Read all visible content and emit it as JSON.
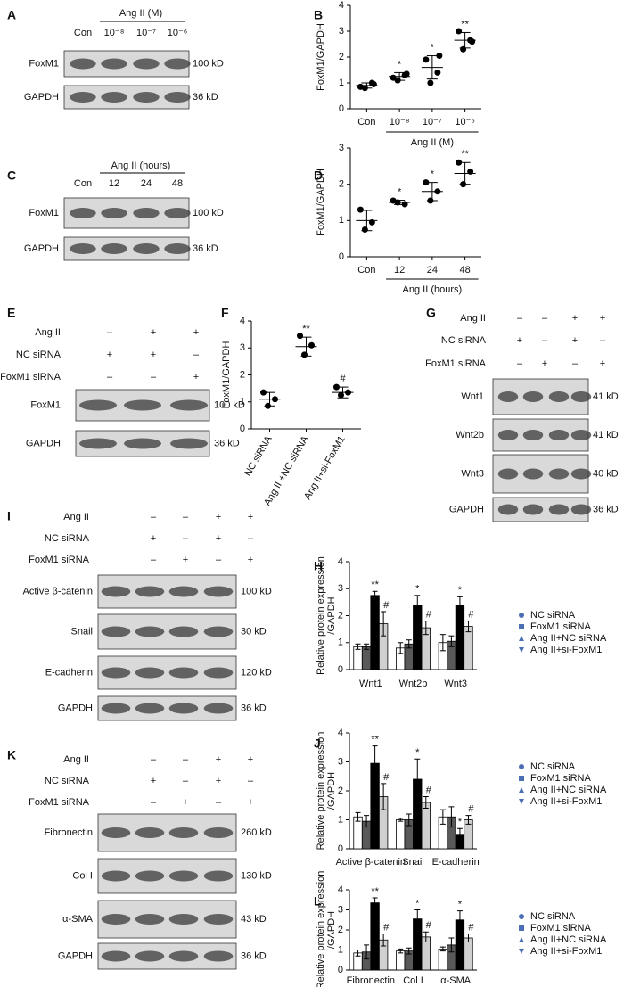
{
  "chart_data": [
    {
      "panel": "B",
      "type": "dot",
      "ylabel": "FoxM1/GAPDH",
      "categories": [
        "Con",
        "10⁻⁸",
        "10⁻⁷",
        "10⁻⁶"
      ],
      "group_label": "Ang II (M)",
      "ylim": [
        0,
        4
      ],
      "yticks": [
        0,
        1,
        2,
        3,
        4
      ],
      "color": "#000000",
      "points": [
        [
          0.85,
          1.0,
          0.8,
          0.95
        ],
        [
          1.2,
          1.3,
          1.1,
          1.35
        ],
        [
          1.9,
          1.4,
          1.0,
          2.05
        ],
        [
          3.0,
          2.65,
          2.3,
          2.6
        ]
      ],
      "mean": [
        0.9,
        1.25,
        1.6,
        2.65
      ],
      "sd": [
        0.1,
        0.15,
        0.45,
        0.3
      ],
      "annotations": [
        null,
        "*",
        "*",
        "**"
      ]
    },
    {
      "panel": "D",
      "type": "dot",
      "ylabel": "FoxM1/GAPDH",
      "categories": [
        "Con",
        "12",
        "24",
        "48"
      ],
      "group_label": "Ang II (hours)",
      "ylim": [
        0,
        3
      ],
      "yticks": [
        0,
        1,
        2,
        3
      ],
      "color": "#000000",
      "points": [
        [
          1.3,
          0.95,
          0.75
        ],
        [
          1.55,
          1.45,
          1.5
        ],
        [
          2.05,
          1.8,
          1.55
        ],
        [
          2.6,
          2.35,
          2.0
        ]
      ],
      "mean": [
        1.0,
        1.5,
        1.8,
        2.3
      ],
      "sd": [
        0.28,
        0.06,
        0.25,
        0.3
      ],
      "annotations": [
        null,
        "*",
        "*",
        "**"
      ]
    },
    {
      "panel": "F",
      "type": "dot",
      "ylabel": "FoxM1/GAPDH",
      "categories": [
        "NC siRNA",
        "Ang II +NC siRNA",
        "Ang II+si-FoxM1"
      ],
      "ylim": [
        0,
        4
      ],
      "yticks": [
        0,
        1,
        2,
        3,
        4
      ],
      "color": "#000000",
      "points": [
        [
          1.35,
          1.1,
          0.85
        ],
        [
          3.45,
          3.1,
          2.75
        ],
        [
          1.55,
          1.35,
          1.25
        ]
      ],
      "mean": [
        1.1,
        3.05,
        1.35
      ],
      "sd": [
        0.25,
        0.35,
        0.2
      ],
      "annotations": [
        null,
        "**",
        "#"
      ]
    },
    {
      "panel": "H",
      "type": "bar",
      "ylabel": [
        "Relative protein expression",
        "/GAPDH"
      ],
      "categories": [
        "Wnt1",
        "Wnt2b",
        "Wnt3"
      ],
      "ylim": [
        0,
        4
      ],
      "yticks": [
        0,
        1,
        2,
        3,
        4
      ],
      "marker_color": "#4a6fb5",
      "series": [
        {
          "name": "NC siRNA",
          "color": "#ffffff",
          "marker": "circle",
          "values": [
            0.85,
            0.8,
            1.0
          ],
          "errors": [
            0.1,
            0.2,
            0.3
          ],
          "annotations": [
            null,
            null,
            null
          ]
        },
        {
          "name": "FoxM1 siRNA",
          "color": "#595959",
          "marker": "square",
          "values": [
            0.85,
            0.95,
            1.05
          ],
          "errors": [
            0.1,
            0.15,
            0.2
          ],
          "annotations": [
            null,
            null,
            null
          ]
        },
        {
          "name": "Ang II+NC siRNA",
          "color": "#000000",
          "marker": "triangle-up",
          "values": [
            2.75,
            2.4,
            2.4
          ],
          "errors": [
            0.15,
            0.35,
            0.3
          ],
          "annotations": [
            "**",
            "*",
            "*"
          ]
        },
        {
          "name": "Ang II+si-FoxM1",
          "color": "#d0d0d0",
          "marker": "triangle-down",
          "values": [
            1.7,
            1.55,
            1.6
          ],
          "errors": [
            0.45,
            0.25,
            0.2
          ],
          "annotations": [
            "#",
            "#",
            "#"
          ]
        }
      ]
    },
    {
      "panel": "J",
      "type": "bar",
      "ylabel": [
        "Relative protein expression",
        "/GAPDH"
      ],
      "categories": [
        "Active β-catenin",
        "Snail",
        "E-cadherin"
      ],
      "ylim": [
        0,
        4
      ],
      "yticks": [
        0,
        1,
        2,
        3,
        4
      ],
      "marker_color": "#4a6fb5",
      "series": [
        {
          "name": "NC siRNA",
          "color": "#ffffff",
          "marker": "circle",
          "values": [
            1.1,
            1.0,
            1.1
          ],
          "errors": [
            0.15,
            0.05,
            0.25
          ],
          "annotations": [
            null,
            null,
            null
          ]
        },
        {
          "name": "FoxM1 siRNA",
          "color": "#595959",
          "marker": "square",
          "values": [
            0.95,
            1.0,
            1.1
          ],
          "errors": [
            0.2,
            0.2,
            0.35
          ],
          "annotations": [
            null,
            null,
            null
          ]
        },
        {
          "name": "Ang II+NC siRNA",
          "color": "#000000",
          "marker": "triangle-up",
          "values": [
            2.95,
            2.4,
            0.5
          ],
          "errors": [
            0.6,
            0.7,
            0.2
          ],
          "annotations": [
            "**",
            "*",
            "*"
          ]
        },
        {
          "name": "Ang II+si-FoxM1",
          "color": "#d0d0d0",
          "marker": "triangle-down",
          "values": [
            1.8,
            1.6,
            1.0
          ],
          "errors": [
            0.45,
            0.2,
            0.15
          ],
          "annotations": [
            "#",
            "#",
            "#"
          ]
        }
      ]
    },
    {
      "panel": "L",
      "type": "bar",
      "ylabel": [
        "Relative protein expression",
        "/GAPDH"
      ],
      "categories": [
        "Fibronectin",
        "Col I",
        "α-SMA"
      ],
      "ylim": [
        0,
        4
      ],
      "yticks": [
        0,
        1,
        2,
        3,
        4
      ],
      "marker_color": "#4a6fb5",
      "series": [
        {
          "name": "NC siRNA",
          "color": "#ffffff",
          "marker": "circle",
          "values": [
            0.85,
            0.95,
            1.05
          ],
          "errors": [
            0.15,
            0.1,
            0.1
          ],
          "annotations": [
            null,
            null,
            null
          ]
        },
        {
          "name": "FoxM1 siRNA",
          "color": "#595959",
          "marker": "square",
          "values": [
            0.9,
            0.95,
            1.25
          ],
          "errors": [
            0.35,
            0.15,
            0.35
          ],
          "annotations": [
            null,
            null,
            null
          ]
        },
        {
          "name": "Ang II+NC siRNA",
          "color": "#000000",
          "marker": "triangle-up",
          "values": [
            3.35,
            2.55,
            2.5
          ],
          "errors": [
            0.25,
            0.45,
            0.45
          ],
          "annotations": [
            "**",
            "*",
            "*"
          ]
        },
        {
          "name": "Ang II+si-FoxM1",
          "color": "#d0d0d0",
          "marker": "triangle-down",
          "values": [
            1.5,
            1.65,
            1.6
          ],
          "errors": [
            0.3,
            0.25,
            0.2
          ],
          "annotations": [
            "#",
            "#",
            "#"
          ]
        }
      ]
    }
  ],
  "blots": [
    {
      "panel": "A",
      "header": "Ang II (M)",
      "lanes": [
        "Con",
        "10⁻⁸",
        "10⁻⁷",
        "10⁻⁶"
      ],
      "rows": [
        {
          "name": "FoxM1",
          "size": "100 kD"
        },
        {
          "name": "GAPDH",
          "size": "36 kD"
        }
      ]
    },
    {
      "panel": "C",
      "header": "Ang II (hours)",
      "lanes": [
        "Con",
        "12",
        "24",
        "48"
      ],
      "rows": [
        {
          "name": "FoxM1",
          "size": "100 kD"
        },
        {
          "name": "GAPDH",
          "size": "36 kD"
        }
      ]
    },
    {
      "panel": "E",
      "conditions": [
        {
          "name": "Ang II",
          "signs": [
            "–",
            "+",
            "+"
          ]
        },
        {
          "name": "NC siRNA",
          "signs": [
            "+",
            "+",
            "–"
          ]
        },
        {
          "name": "FoxM1 siRNA",
          "signs": [
            "–",
            "–",
            "+"
          ]
        }
      ],
      "rows": [
        {
          "name": "FoxM1",
          "size": "100 kD"
        },
        {
          "name": "GAPDH",
          "size": "36 kD"
        }
      ]
    },
    {
      "panel": "G",
      "conditions": [
        {
          "name": "Ang II",
          "signs": [
            "–",
            "–",
            "+",
            "+"
          ]
        },
        {
          "name": "NC siRNA",
          "signs": [
            "+",
            "–",
            "+",
            "–"
          ]
        },
        {
          "name": "FoxM1 siRNA",
          "signs": [
            "–",
            "+",
            "–",
            "+"
          ]
        }
      ],
      "rows": [
        {
          "name": "Wnt1",
          "size": "41 kD"
        },
        {
          "name": "Wnt2b",
          "size": "41 kD"
        },
        {
          "name": "Wnt3",
          "size": "40 kD"
        },
        {
          "name": "GAPDH",
          "size": "36 kD"
        }
      ]
    },
    {
      "panel": "I",
      "conditions": [
        {
          "name": "Ang II",
          "signs": [
            "–",
            "–",
            "+",
            "+"
          ]
        },
        {
          "name": "NC siRNA",
          "signs": [
            "+",
            "–",
            "+",
            "–"
          ]
        },
        {
          "name": "FoxM1 siRNA",
          "signs": [
            "–",
            "+",
            "–",
            "+"
          ]
        }
      ],
      "rows": [
        {
          "name": "Active β-catenin",
          "size": "100 kD"
        },
        {
          "name": "Snail",
          "size": "30 kD"
        },
        {
          "name": "E-cadherin",
          "size": "120 kD"
        },
        {
          "name": "GAPDH",
          "size": "36 kD"
        }
      ]
    },
    {
      "panel": "K",
      "conditions": [
        {
          "name": "Ang II",
          "signs": [
            "–",
            "–",
            "+",
            "+"
          ]
        },
        {
          "name": "NC siRNA",
          "signs": [
            "+",
            "–",
            "+",
            "–"
          ]
        },
        {
          "name": "FoxM1 siRNA",
          "signs": [
            "–",
            "+",
            "–",
            "+"
          ]
        }
      ],
      "rows": [
        {
          "name": "Fibronectin",
          "size": "260 kD"
        },
        {
          "name": "Col I",
          "size": "130 kD"
        },
        {
          "name": "α-SMA",
          "size": "43 kD"
        },
        {
          "name": "GAPDH",
          "size": "36 kD"
        }
      ]
    }
  ]
}
